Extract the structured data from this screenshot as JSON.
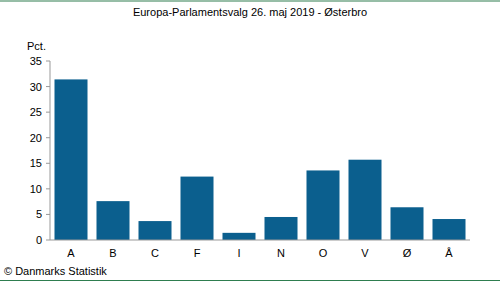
{
  "chart_data": {
    "type": "bar",
    "title": "Europa-Parlamentsvalg 26. maj 2019 - Østerbro",
    "y_label": "Pct.",
    "categories": [
      "A",
      "B",
      "C",
      "F",
      "I",
      "N",
      "O",
      "V",
      "Ø",
      "Å"
    ],
    "values": [
      31.4,
      7.6,
      3.7,
      12.4,
      1.4,
      4.5,
      13.6,
      15.7,
      6.4,
      4.1
    ],
    "color": "#0b5f8e",
    "ylim": [
      0,
      35
    ],
    "yticks": [
      0,
      5,
      10,
      15,
      20,
      25,
      30,
      35
    ],
    "grid": false,
    "copyright": "© Danmarks Statistik"
  }
}
